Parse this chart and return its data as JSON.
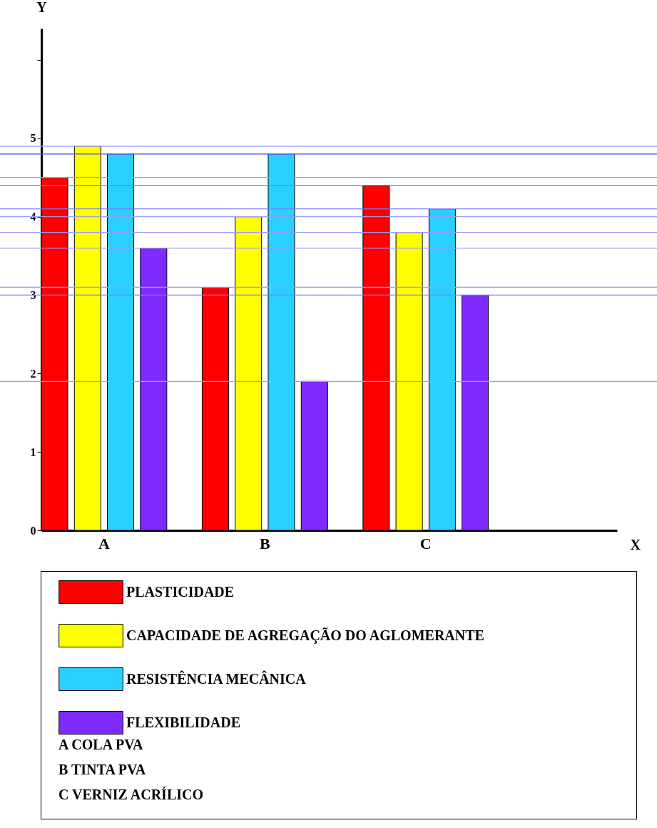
{
  "chart_data": {
    "type": "bar",
    "xlabel": "X",
    "ylabel": "Y",
    "categories": [
      "A",
      "B",
      "C"
    ],
    "series": [
      {
        "name": "PLASTICIDADE",
        "color": "#ff0000",
        "values": [
          4.5,
          3.1,
          4.4
        ]
      },
      {
        "name": "CAPACIDADE DE AGREGAÇÃO DO AGLOMERANTE",
        "color": "#ffff00",
        "values": [
          4.9,
          4.0,
          3.8
        ]
      },
      {
        "name": "RESISTÊNCIA MECÂNICA",
        "color": "#29d0ff",
        "values": [
          4.8,
          4.8,
          4.1
        ]
      },
      {
        "name": "FLEXIBILIDADE",
        "color": "#7f2bff",
        "values": [
          3.6,
          1.9,
          3.0
        ]
      }
    ],
    "ylim": [
      0,
      6.4
    ],
    "yticks": [
      0,
      1,
      2,
      3,
      4,
      5,
      {
        "value": 6,
        "label": null
      }
    ],
    "ref_lines": [
      {
        "axis": "y",
        "value": 4.9,
        "color": "#9a9aff"
      },
      {
        "axis": "y",
        "value": 4.8,
        "color": "#5a5aff"
      },
      {
        "axis": "y",
        "value": 4.5,
        "color": "#9a9aff"
      },
      {
        "axis": "y",
        "value": 4.4,
        "color": "#7a7aff"
      },
      {
        "axis": "y",
        "value": 4.1,
        "color": "#7a7aff"
      },
      {
        "axis": "y",
        "value": 4.0,
        "color": "#9a9aff"
      },
      {
        "axis": "y",
        "value": 3.8,
        "color": "#9a9aff"
      },
      {
        "axis": "y",
        "value": 3.6,
        "color": "#9a9aff"
      },
      {
        "axis": "y",
        "value": 3.1,
        "color": "#9a9aff"
      },
      {
        "axis": "y",
        "value": 3.0,
        "color": "#7a7aff"
      },
      {
        "axis": "y",
        "value": 1.9,
        "color": "#9a9aff"
      }
    ],
    "legend": "bottom",
    "annotations": [
      "A COLA PVA",
      "B TINTA PVA",
      "C VERNIZ ACRÍLICO"
    ]
  }
}
